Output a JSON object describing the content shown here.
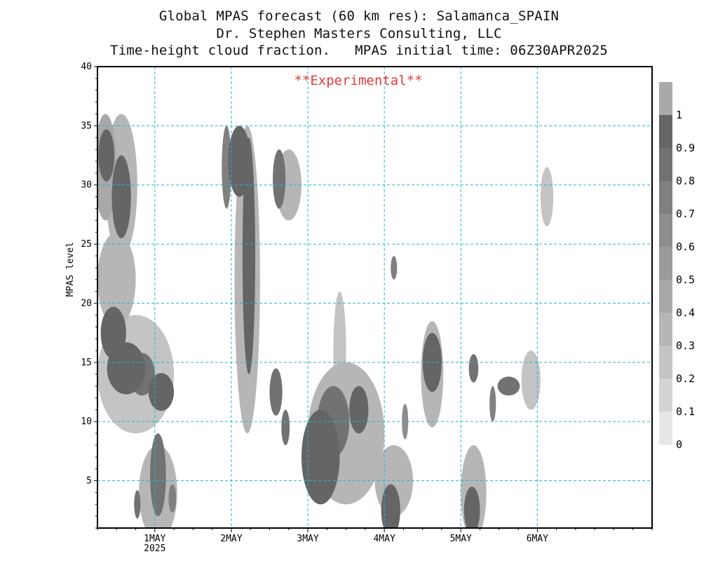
{
  "titles": {
    "line1": "Global MPAS forecast (60 km res): Salamanca_SPAIN",
    "line2": "Dr. Stephen Masters Consulting, LLC",
    "line3": "Time-height cloud fraction.   MPAS initial time: 06Z30APR2025"
  },
  "chart_data": {
    "type": "heatmap",
    "title": "Time-height cloud fraction.",
    "xlabel": "",
    "ylabel": "MPAS level",
    "annotation": "**Experimental**",
    "annotation_color": "#e03c3c",
    "xlim_hours": [
      0,
      174
    ],
    "ylim": [
      1,
      40
    ],
    "x_ticks": [
      {
        "hour": 18,
        "label": "1MAY",
        "sublabel": "2025"
      },
      {
        "hour": 42,
        "label": "2MAY",
        "sublabel": ""
      },
      {
        "hour": 66,
        "label": "3MAY",
        "sublabel": ""
      },
      {
        "hour": 90,
        "label": "4MAY",
        "sublabel": ""
      },
      {
        "hour": 114,
        "label": "5MAY",
        "sublabel": ""
      },
      {
        "hour": 138,
        "label": "6MAY",
        "sublabel": ""
      }
    ],
    "y_ticks": [
      5,
      10,
      15,
      20,
      25,
      30,
      35,
      40
    ],
    "grid": true,
    "grid_color": "#22b8c8",
    "colorbar": {
      "levels": [
        0,
        0.1,
        0.2,
        0.3,
        0.4,
        0.5,
        0.6,
        0.7,
        0.8,
        0.9,
        1
      ],
      "colors": [
        "#e6e6e6",
        "#d4d4d4",
        "#c4c4c4",
        "#b6b6b6",
        "#a8a8a8",
        "#9b9b9b",
        "#8e8e8e",
        "#808080",
        "#727272",
        "#656565",
        "#aaaaaa"
      ]
    },
    "cloud_blobs": [
      {
        "hour": 2.5,
        "level": 31.5,
        "dh": 3.5,
        "dl": 4.5,
        "value": 0.4
      },
      {
        "hour": 7.5,
        "level": 30,
        "dh": 5,
        "dl": 6,
        "value": 0.35
      },
      {
        "hour": 2.8,
        "level": 32.5,
        "dh": 2.5,
        "dl": 2.2,
        "value": 0.95
      },
      {
        "hour": 7.5,
        "level": 29,
        "dh": 3,
        "dl": 3.5,
        "value": 0.9
      },
      {
        "hour": 6,
        "level": 22,
        "dh": 6,
        "dl": 4,
        "value": 0.3
      },
      {
        "hour": 5,
        "level": 17.5,
        "dh": 4,
        "dl": 2.2,
        "value": 0.9
      },
      {
        "hour": 9,
        "level": 14.5,
        "dh": 6,
        "dl": 2.2,
        "value": 0.95
      },
      {
        "hour": 14,
        "level": 14,
        "dh": 4,
        "dl": 1.8,
        "value": 0.85
      },
      {
        "hour": 20,
        "level": 12.5,
        "dh": 4,
        "dl": 1.6,
        "value": 0.9
      },
      {
        "hour": 12,
        "level": 14,
        "dh": 12,
        "dl": 5,
        "value": 0.25
      },
      {
        "hour": 19,
        "level": 5.5,
        "dh": 2.5,
        "dl": 3.5,
        "value": 0.85
      },
      {
        "hour": 19,
        "level": 4,
        "dh": 6,
        "dl": 4,
        "value": 0.3
      },
      {
        "hour": 12.5,
        "level": 3,
        "dh": 1,
        "dl": 1.2,
        "value": 0.8
      },
      {
        "hour": 23.5,
        "level": 3.5,
        "dh": 1.2,
        "dl": 1.2,
        "value": 0.7
      },
      {
        "hour": 40.5,
        "level": 31.5,
        "dh": 1.5,
        "dl": 3.5,
        "value": 0.7
      },
      {
        "hour": 44.5,
        "level": 32,
        "dh": 3.5,
        "dl": 3,
        "value": 0.95
      },
      {
        "hour": 47.5,
        "level": 24,
        "dh": 2,
        "dl": 10,
        "value": 0.9
      },
      {
        "hour": 47,
        "level": 22,
        "dh": 4,
        "dl": 13,
        "value": 0.3
      },
      {
        "hour": 57,
        "level": 30.5,
        "dh": 2,
        "dl": 2.5,
        "value": 0.85
      },
      {
        "hour": 60,
        "level": 30,
        "dh": 4,
        "dl": 3,
        "value": 0.3
      },
      {
        "hour": 56,
        "level": 12.5,
        "dh": 2,
        "dl": 2,
        "value": 0.85
      },
      {
        "hour": 59,
        "level": 9.5,
        "dh": 1.3,
        "dl": 1.5,
        "value": 0.8
      },
      {
        "hour": 70,
        "level": 7,
        "dh": 6,
        "dl": 4,
        "value": 0.95
      },
      {
        "hour": 74,
        "level": 10,
        "dh": 5,
        "dl": 3,
        "value": 0.85
      },
      {
        "hour": 82,
        "level": 11,
        "dh": 3,
        "dl": 2,
        "value": 0.9
      },
      {
        "hour": 78,
        "level": 9,
        "dh": 12,
        "dl": 6,
        "value": 0.3
      },
      {
        "hour": 76,
        "level": 16,
        "dh": 2,
        "dl": 5,
        "value": 0.25
      },
      {
        "hour": 92,
        "level": 2.5,
        "dh": 3,
        "dl": 2.2,
        "value": 0.9
      },
      {
        "hour": 93,
        "level": 5,
        "dh": 6,
        "dl": 3,
        "value": 0.3
      },
      {
        "hour": 93,
        "level": 23,
        "dh": 1,
        "dl": 1,
        "value": 0.75
      },
      {
        "hour": 96.5,
        "level": 10,
        "dh": 1,
        "dl": 1.5,
        "value": 0.6
      },
      {
        "hour": 105,
        "level": 15,
        "dh": 3,
        "dl": 2.5,
        "value": 0.9
      },
      {
        "hour": 105,
        "level": 14,
        "dh": 3.5,
        "dl": 4.5,
        "value": 0.3
      },
      {
        "hour": 117.5,
        "level": 2.5,
        "dh": 2.5,
        "dl": 2,
        "value": 0.9
      },
      {
        "hour": 118,
        "level": 4,
        "dh": 4,
        "dl": 4,
        "value": 0.3
      },
      {
        "hour": 118,
        "level": 14.5,
        "dh": 1.5,
        "dl": 1.2,
        "value": 0.8
      },
      {
        "hour": 129,
        "level": 13,
        "dh": 3.5,
        "dl": 0.8,
        "value": 0.85
      },
      {
        "hour": 124,
        "level": 11.5,
        "dh": 1,
        "dl": 1.5,
        "value": 0.7
      },
      {
        "hour": 136,
        "level": 13.5,
        "dh": 3,
        "dl": 2.5,
        "value": 0.25
      },
      {
        "hour": 141,
        "level": 29,
        "dh": 2,
        "dl": 2.5,
        "value": 0.25
      }
    ]
  }
}
